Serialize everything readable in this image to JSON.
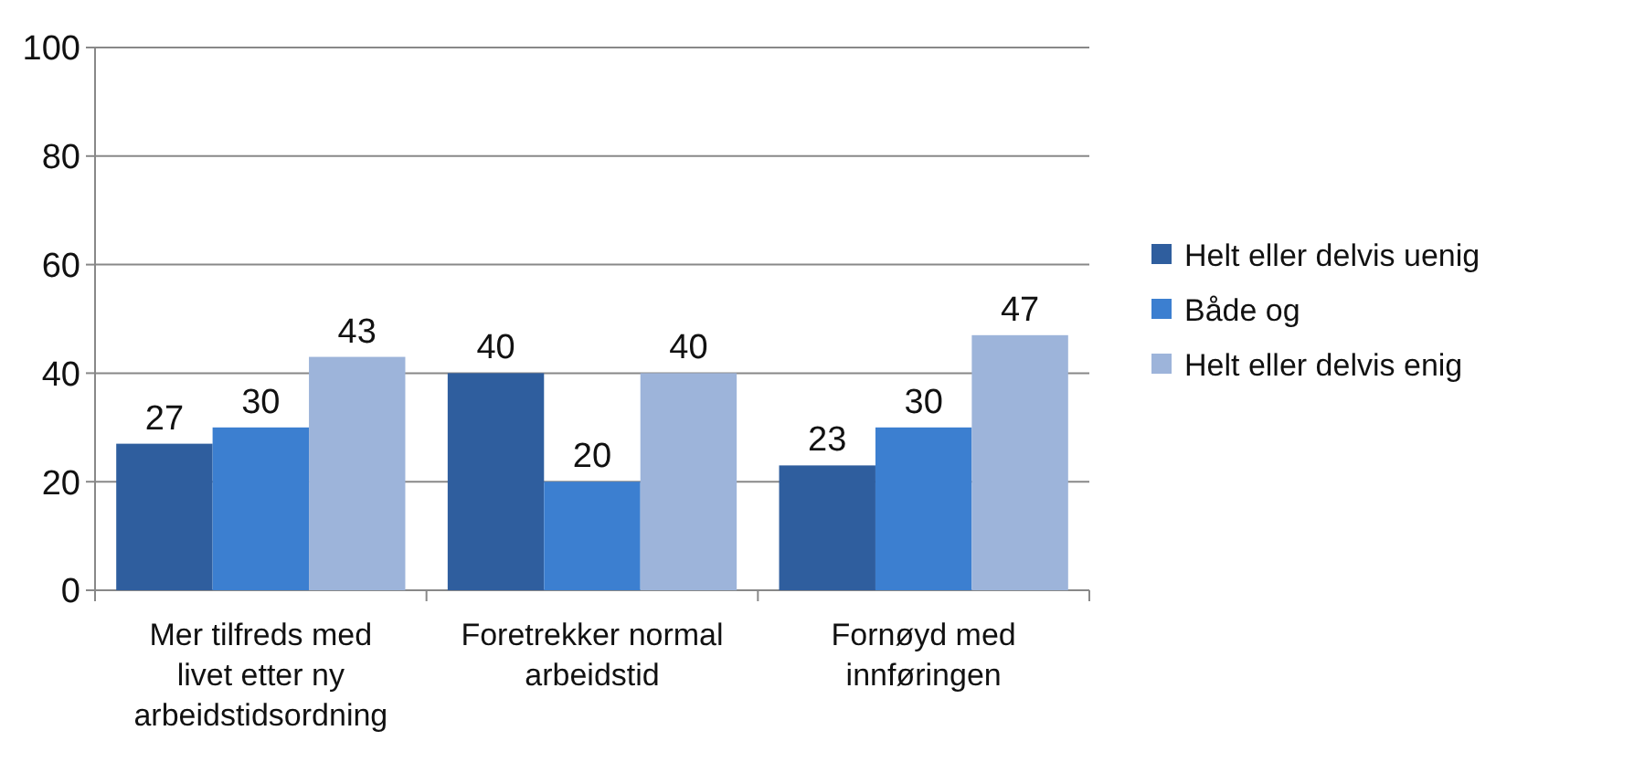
{
  "chart_data": {
    "type": "bar",
    "categories": [
      "Mer tilfreds med livet etter ny arbeidstidsordning",
      "Foretrekker normal arbeidstid",
      "Fornøyd med innføringen"
    ],
    "series": [
      {
        "name": "Helt eller delvis uenig",
        "color": "#2f5e9e",
        "values": [
          27,
          40,
          23
        ]
      },
      {
        "name": "Både og",
        "color": "#3c7fd0",
        "values": [
          30,
          20,
          30
        ]
      },
      {
        "name": "Helt eller delvis enig",
        "color": "#9db4da",
        "values": [
          43,
          40,
          47
        ]
      }
    ],
    "ylim": [
      0,
      100
    ],
    "yticks": [
      0,
      20,
      40,
      60,
      80,
      100
    ],
    "grid": "y",
    "legend": "right",
    "data_labels": true
  }
}
